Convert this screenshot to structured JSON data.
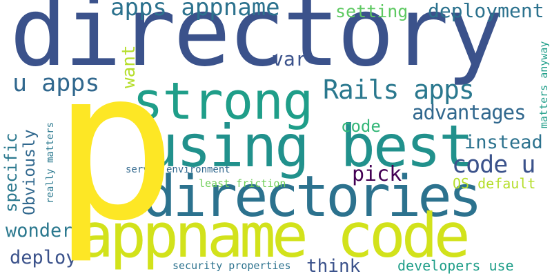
{
  "words": [
    {
      "text": "directory",
      "color": "#3b528b"
    },
    {
      "text": "p",
      "color": "#fde725"
    },
    {
      "text": "strong",
      "color": "#1f9e89"
    },
    {
      "text": "using best",
      "color": "#21918c"
    },
    {
      "text": "directories",
      "color": "#2c728e"
    },
    {
      "text": "appname code",
      "color": "#d2e21b"
    },
    {
      "text": "apps appname",
      "color": "#2c728e"
    },
    {
      "text": "setting",
      "color": "#5ec962"
    },
    {
      "text": "deployment",
      "color": "#2c728e"
    },
    {
      "text": "u apps",
      "color": "#31688e"
    },
    {
      "text": "var",
      "color": "#3b528b"
    },
    {
      "text": "Rails apps",
      "color": "#2a788e"
    },
    {
      "text": "advantages",
      "color": "#31688e"
    },
    {
      "text": "code",
      "color": "#35b779"
    },
    {
      "text": "instead",
      "color": "#2c728e"
    },
    {
      "text": "code u",
      "color": "#3b528b"
    },
    {
      "text": "pick",
      "color": "#440154"
    },
    {
      "text": "server environment",
      "color": "#31688e"
    },
    {
      "text": "least friction",
      "color": "#6ece58"
    },
    {
      "text": "OS default",
      "color": "#b5de2b"
    },
    {
      "text": "wonder",
      "color": "#2a788e"
    },
    {
      "text": "deploy",
      "color": "#3b528b"
    },
    {
      "text": "security properties",
      "color": "#2c728e"
    },
    {
      "text": "think",
      "color": "#3b528b"
    },
    {
      "text": "developers use",
      "color": "#1f9e89"
    },
    {
      "text": "want",
      "color": "#b5de2b"
    },
    {
      "text": "specific",
      "color": "#2a788e"
    },
    {
      "text": "Obviously",
      "color": "#31688e"
    },
    {
      "text": "really matters",
      "color": "#2a788e"
    },
    {
      "text": "matters anyway",
      "color": "#1f9e89"
    }
  ]
}
